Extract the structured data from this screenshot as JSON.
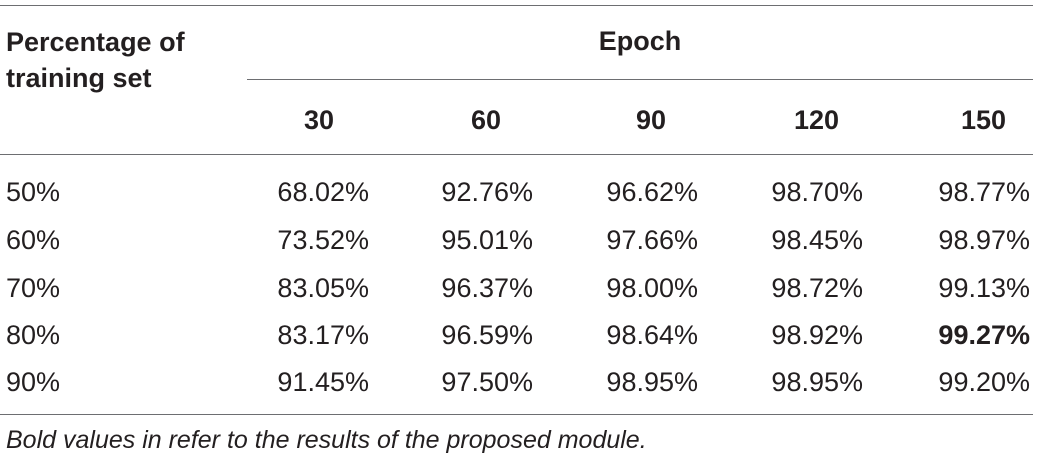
{
  "table": {
    "header_col0": [
      "Percentage of",
      "training set"
    ],
    "header_group": "Epoch",
    "epochs": [
      "30",
      "60",
      "90",
      "120",
      "150"
    ],
    "rows": [
      {
        "label": "50%",
        "values": [
          "68.02%",
          "92.76%",
          "96.62%",
          "98.70%",
          "98.77%"
        ]
      },
      {
        "label": "60%",
        "values": [
          "73.52%",
          "95.01%",
          "97.66%",
          "98.45%",
          "98.97%"
        ]
      },
      {
        "label": "70%",
        "values": [
          "83.05%",
          "96.37%",
          "98.00%",
          "98.72%",
          "99.13%"
        ]
      },
      {
        "label": "80%",
        "values": [
          "83.17%",
          "96.59%",
          "98.64%",
          "98.92%",
          "99.27%"
        ]
      },
      {
        "label": "90%",
        "values": [
          "91.45%",
          "97.50%",
          "98.95%",
          "98.95%",
          "99.20%"
        ]
      }
    ],
    "bold_cell": {
      "row": 3,
      "col": 4
    },
    "footnote": "Bold values in refer to the results of the proposed module."
  }
}
